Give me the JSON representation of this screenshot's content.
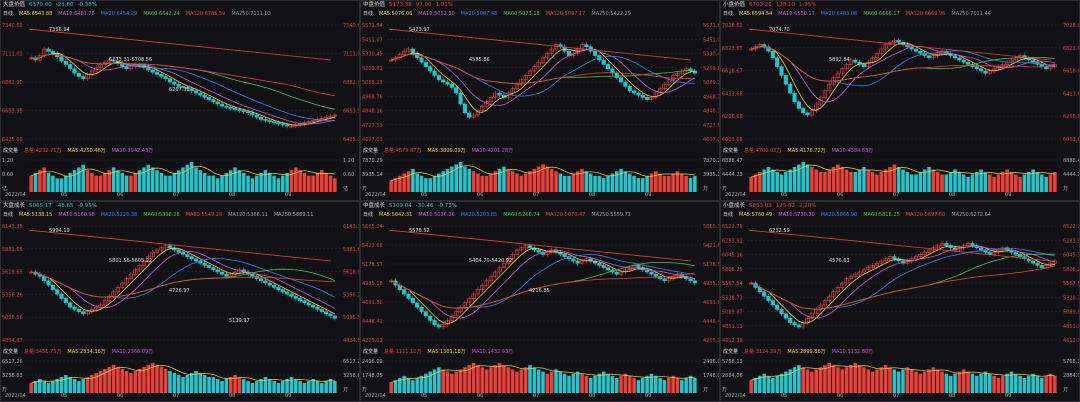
{
  "colors": {
    "up": "#e8413a",
    "down": "#28c2c8",
    "ma5": "#e9d34a",
    "ma10": "#c45ad0",
    "ma20": "#3a7fe0",
    "ma60": "#4fbf4f",
    "ma120": "#e04040",
    "ma250": "#9a9a9a",
    "bg": "#121216",
    "grid": "#2a2a30"
  },
  "x_labels": [
    "2022/04",
    "05",
    "06",
    "07",
    "08",
    "09"
  ],
  "panels": [
    {
      "name": "大盘价值",
      "price": "6370.00",
      "chg": "-23.80",
      "pct": "-0.38%",
      "mode": "日线",
      "ma": [
        "MA5:6543.88",
        "MA10:6481.78",
        "MA20:6454.29",
        "MA60:6642.24",
        "MA120:6785.59",
        "MA250:7111.03"
      ],
      "yticks": [
        "7340.60",
        "7111.03",
        "6882.90",
        "6653.95",
        "6425.00"
      ],
      "annot": [
        "7356.94",
        "6773.31-6708.56",
        "6267.31"
      ],
      "vol": [
        "总量:4232.71万",
        "MA5:4250.46万",
        "MA10:3942.43万"
      ],
      "vticks": [
        "1.20",
        "0.60",
        "亿"
      ],
      "candles": [
        72,
        70,
        74,
        80,
        78,
        76,
        73,
        69,
        66,
        62,
        58,
        55,
        53,
        57,
        60,
        63,
        66,
        68,
        70,
        69,
        67,
        64,
        62,
        64,
        66,
        65,
        63,
        61,
        59,
        57,
        55,
        53,
        50,
        48,
        46,
        45,
        44,
        42,
        40,
        38,
        36,
        34,
        32,
        30,
        28,
        27,
        26,
        25,
        24,
        23,
        22,
        20,
        18,
        16,
        15,
        14,
        13,
        12,
        11,
        10,
        10,
        11,
        12,
        13,
        14,
        15,
        16,
        17,
        18,
        19,
        20
      ],
      "vols": [
        6,
        7,
        8,
        9,
        7,
        6,
        5,
        5,
        6,
        7,
        8,
        9,
        10,
        8,
        7,
        6,
        6,
        7,
        8,
        9,
        8,
        7,
        6,
        6,
        7,
        8,
        9,
        10,
        9,
        8,
        7,
        6,
        6,
        7,
        8,
        9,
        10,
        11,
        9,
        8,
        7,
        6,
        6,
        5,
        6,
        7,
        8,
        9,
        8,
        7,
        6,
        5,
        6,
        7,
        8,
        7,
        6,
        5,
        6,
        7,
        8,
        9,
        8,
        7,
        6,
        6,
        7,
        8,
        7,
        6,
        5
      ]
    },
    {
      "name": "中盘价值",
      "price": "5173.38",
      "chg": "97.00",
      "pct": "1.91%",
      "mode": "日线",
      "ma": [
        "MA5:5076.06",
        "MA10:5052.30",
        "MA20:5087.48",
        "MA60:5073.18",
        "MA120:5097.17",
        "MA250:5422.29"
      ],
      "yticks": [
        "5571.84",
        "5451.07",
        "5330.45",
        "5209.81",
        "5089.23",
        "4968.76",
        "4848.16",
        "4727.53",
        "4607.03"
      ],
      "annot": [
        "5423.97",
        "4585.86"
      ],
      "vol": [
        "总量:4579.87万",
        "MA5:3899.09万",
        "MA10:4201.28万"
      ],
      "vticks": [
        "7870.29",
        "3935.14",
        "万"
      ],
      "candles": [
        70,
        72,
        75,
        78,
        80,
        76,
        72,
        68,
        64,
        60,
        56,
        52,
        50,
        48,
        45,
        40,
        30,
        22,
        18,
        20,
        24,
        28,
        32,
        36,
        40,
        38,
        36,
        40,
        44,
        48,
        52,
        56,
        60,
        64,
        68,
        72,
        76,
        80,
        84,
        82,
        78,
        74,
        76,
        80,
        84,
        82,
        78,
        74,
        70,
        66,
        62,
        58,
        54,
        50,
        46,
        42,
        40,
        38,
        36,
        34,
        36,
        40,
        44,
        48,
        52,
        56,
        58,
        60,
        62,
        60,
        58
      ],
      "vols": [
        5,
        6,
        7,
        8,
        9,
        10,
        8,
        7,
        6,
        6,
        7,
        8,
        9,
        10,
        11,
        12,
        13,
        11,
        10,
        9,
        8,
        7,
        7,
        8,
        9,
        10,
        11,
        10,
        9,
        8,
        7,
        8,
        9,
        10,
        11,
        12,
        11,
        10,
        9,
        8,
        7,
        7,
        8,
        9,
        10,
        9,
        8,
        7,
        7,
        6,
        7,
        8,
        9,
        10,
        9,
        8,
        7,
        6,
        6,
        7,
        8,
        9,
        8,
        7,
        7,
        8,
        9,
        8,
        7,
        6,
        7
      ]
    },
    {
      "name": "小盘价值",
      "price": "6703.26",
      "chg": "128.10",
      "pct": "1.95%",
      "mode": "日线",
      "ma": [
        "MA5:6594.54",
        "MA10:6550.17",
        "MA20:6483.08",
        "MA60:6666.17",
        "MA120:6669.96",
        "MA250:7011.44"
      ],
      "yticks": [
        "7028.62",
        "6823.67",
        "6618.67",
        "6413.68",
        "6208.68",
        "6003.68"
      ],
      "annot": [
        "7074.70",
        "5892.84"
      ],
      "vol": [
        "总量:4700.03万",
        "MA5:4176.72万",
        "MA10:4384.83万"
      ],
      "vticks": [
        "8888.47",
        "4444.23",
        "万"
      ],
      "candles": [
        80,
        82,
        84,
        82,
        78,
        72,
        64,
        56,
        48,
        40,
        32,
        26,
        22,
        20,
        24,
        30,
        36,
        42,
        48,
        54,
        58,
        62,
        66,
        70,
        68,
        66,
        64,
        68,
        72,
        76,
        80,
        84,
        86,
        88,
        86,
        84,
        82,
        80,
        78,
        76,
        74,
        72,
        74,
        76,
        78,
        76,
        74,
        72,
        70,
        68,
        66,
        64,
        62,
        60,
        58,
        60,
        62,
        64,
        66,
        68,
        70,
        72,
        74,
        72,
        70,
        68,
        66,
        64,
        62,
        64,
        66
      ],
      "vols": [
        6,
        7,
        8,
        9,
        10,
        9,
        8,
        7,
        8,
        9,
        10,
        11,
        12,
        11,
        10,
        9,
        8,
        8,
        9,
        10,
        11,
        10,
        9,
        8,
        8,
        9,
        10,
        9,
        8,
        7,
        8,
        9,
        10,
        11,
        10,
        9,
        8,
        7,
        7,
        8,
        9,
        10,
        9,
        8,
        7,
        7,
        8,
        9,
        8,
        7,
        6,
        7,
        8,
        9,
        8,
        7,
        6,
        7,
        8,
        9,
        8,
        7,
        6,
        7,
        8,
        9,
        8,
        7,
        6,
        7,
        8
      ]
    },
    {
      "name": "大盘成长",
      "price": "5065.17",
      "chg": "-48.65",
      "pct": "-0.95%",
      "mode": "日线",
      "ma": [
        "MA5:5138.15",
        "MA10:5160.98",
        "MA20:5226.38",
        "MA60:5398.26",
        "MA80:5549.28",
        "MA120:5388.11",
        "MA250:5889.11"
      ],
      "yticks": [
        "6143.35",
        "5881.65",
        "5618.65",
        "5356.26",
        "5096.56",
        "4834.87"
      ],
      "annot": [
        "5994.19",
        "5801.56-5605.22",
        "4726.97",
        "5139.97"
      ],
      "vol": [
        "总量:3451.75万",
        "MA5:2334.36万",
        "MA10:2366.09万"
      ],
      "vticks": [
        "6517.26",
        "3258.63",
        "万"
      ],
      "candles": [
        60,
        58,
        56,
        52,
        48,
        44,
        40,
        36,
        32,
        28,
        26,
        24,
        22,
        24,
        26,
        28,
        30,
        34,
        38,
        42,
        46,
        50,
        54,
        58,
        62,
        66,
        70,
        74,
        78,
        80,
        82,
        84,
        82,
        80,
        78,
        76,
        74,
        72,
        70,
        68,
        66,
        64,
        62,
        60,
        58,
        56,
        58,
        60,
        62,
        60,
        58,
        56,
        54,
        52,
        50,
        48,
        46,
        44,
        42,
        40,
        38,
        36,
        34,
        32,
        30,
        28,
        26,
        24,
        22,
        20,
        18
      ],
      "vols": [
        5,
        6,
        7,
        6,
        5,
        6,
        7,
        8,
        9,
        8,
        7,
        6,
        7,
        8,
        9,
        10,
        11,
        12,
        13,
        14,
        13,
        12,
        11,
        10,
        11,
        12,
        13,
        14,
        15,
        14,
        13,
        12,
        11,
        10,
        9,
        8,
        9,
        10,
        11,
        10,
        9,
        8,
        8,
        7,
        6,
        7,
        8,
        9,
        8,
        7,
        6,
        5,
        6,
        7,
        8,
        7,
        6,
        5,
        6,
        7,
        8,
        7,
        6,
        5,
        6,
        7,
        6,
        5,
        6,
        7,
        6
      ]
    },
    {
      "name": "中盘成长",
      "price": "5109.04",
      "chg": "-30.46",
      "pct": "-0.73%",
      "mode": "日线",
      "ma": [
        "MA5:5042.31",
        "MA10:5036.36",
        "MA20:5203.85",
        "MA60:5268.74",
        "MA120:5070.47",
        "MA250:5559.71"
      ],
      "yticks": [
        "5665.34",
        "5421.66",
        "5178.57",
        "4935.18",
        "4691.80",
        "4448.41",
        "4205.02"
      ],
      "annot": [
        "5578.52",
        "5404.70-5420.92",
        "4216.85"
      ],
      "vol": [
        "总量:1111.12万",
        "MA5:1301.18万",
        "MA10:1432.93万"
      ],
      "vticks": [
        "2496.09",
        "1748.05",
        "万"
      ],
      "candles": [
        52,
        48,
        44,
        40,
        36,
        32,
        28,
        24,
        20,
        16,
        12,
        10,
        12,
        16,
        20,
        24,
        28,
        32,
        36,
        40,
        44,
        48,
        52,
        56,
        60,
        64,
        68,
        72,
        76,
        80,
        82,
        84,
        82,
        80,
        78,
        76,
        78,
        80,
        78,
        76,
        74,
        72,
        70,
        68,
        70,
        72,
        70,
        68,
        66,
        64,
        62,
        60,
        58,
        60,
        62,
        64,
        66,
        64,
        62,
        60,
        58,
        56,
        54,
        52,
        54,
        56,
        58,
        56,
        54,
        52,
        50
      ],
      "vols": [
        5,
        6,
        7,
        8,
        7,
        6,
        7,
        8,
        9,
        10,
        11,
        12,
        11,
        10,
        9,
        10,
        11,
        12,
        13,
        14,
        13,
        12,
        11,
        12,
        13,
        14,
        13,
        12,
        11,
        10,
        11,
        12,
        13,
        12,
        11,
        10,
        9,
        10,
        11,
        10,
        9,
        8,
        9,
        10,
        9,
        8,
        7,
        8,
        9,
        10,
        9,
        8,
        7,
        8,
        9,
        8,
        7,
        6,
        7,
        8,
        9,
        8,
        7,
        6,
        7,
        8,
        7,
        6,
        7,
        8,
        7
      ]
    },
    {
      "name": "小盘成长",
      "price": "5853.03",
      "chg": "125.62",
      "pct": "2.20%",
      "mode": "日线",
      "ma": [
        "MA5:5760.49",
        "MA10:5730.30",
        "MA20:5866.90",
        "MA60:5818.25",
        "MA120:5697.60",
        "MA250:6272.64"
      ],
      "yticks": [
        "6522.79",
        "6283.92",
        "6045.16",
        "5806.25",
        "5567.54",
        "5328.73",
        "5089.87",
        "4851.11",
        "4612.39"
      ],
      "annot": [
        "6232.59",
        "4576.63"
      ],
      "vol": [
        "总量:3124.39万",
        "MA5:2899.86万",
        "MA10:3132.80万"
      ],
      "vticks": [
        "5768.13",
        "2884.06",
        "万"
      ],
      "candles": [
        50,
        46,
        42,
        38,
        34,
        30,
        26,
        22,
        18,
        14,
        12,
        10,
        14,
        18,
        22,
        26,
        30,
        34,
        38,
        42,
        46,
        50,
        54,
        56,
        58,
        60,
        62,
        64,
        66,
        68,
        70,
        72,
        74,
        72,
        70,
        68,
        70,
        72,
        74,
        76,
        78,
        80,
        82,
        84,
        86,
        84,
        82,
        80,
        82,
        84,
        86,
        84,
        82,
        80,
        78,
        76,
        78,
        80,
        82,
        80,
        78,
        76,
        74,
        72,
        70,
        68,
        66,
        64,
        66,
        68,
        70
      ],
      "vols": [
        6,
        7,
        8,
        9,
        8,
        7,
        8,
        9,
        10,
        11,
        12,
        13,
        12,
        11,
        10,
        11,
        12,
        13,
        14,
        13,
        12,
        11,
        12,
        13,
        14,
        13,
        12,
        11,
        10,
        11,
        12,
        13,
        12,
        11,
        10,
        11,
        12,
        11,
        10,
        9,
        10,
        11,
        12,
        11,
        10,
        9,
        8,
        9,
        10,
        11,
        10,
        9,
        8,
        9,
        10,
        9,
        8,
        7,
        8,
        9,
        10,
        9,
        8,
        7,
        8,
        9,
        8,
        7,
        8,
        9,
        8
      ]
    }
  ]
}
